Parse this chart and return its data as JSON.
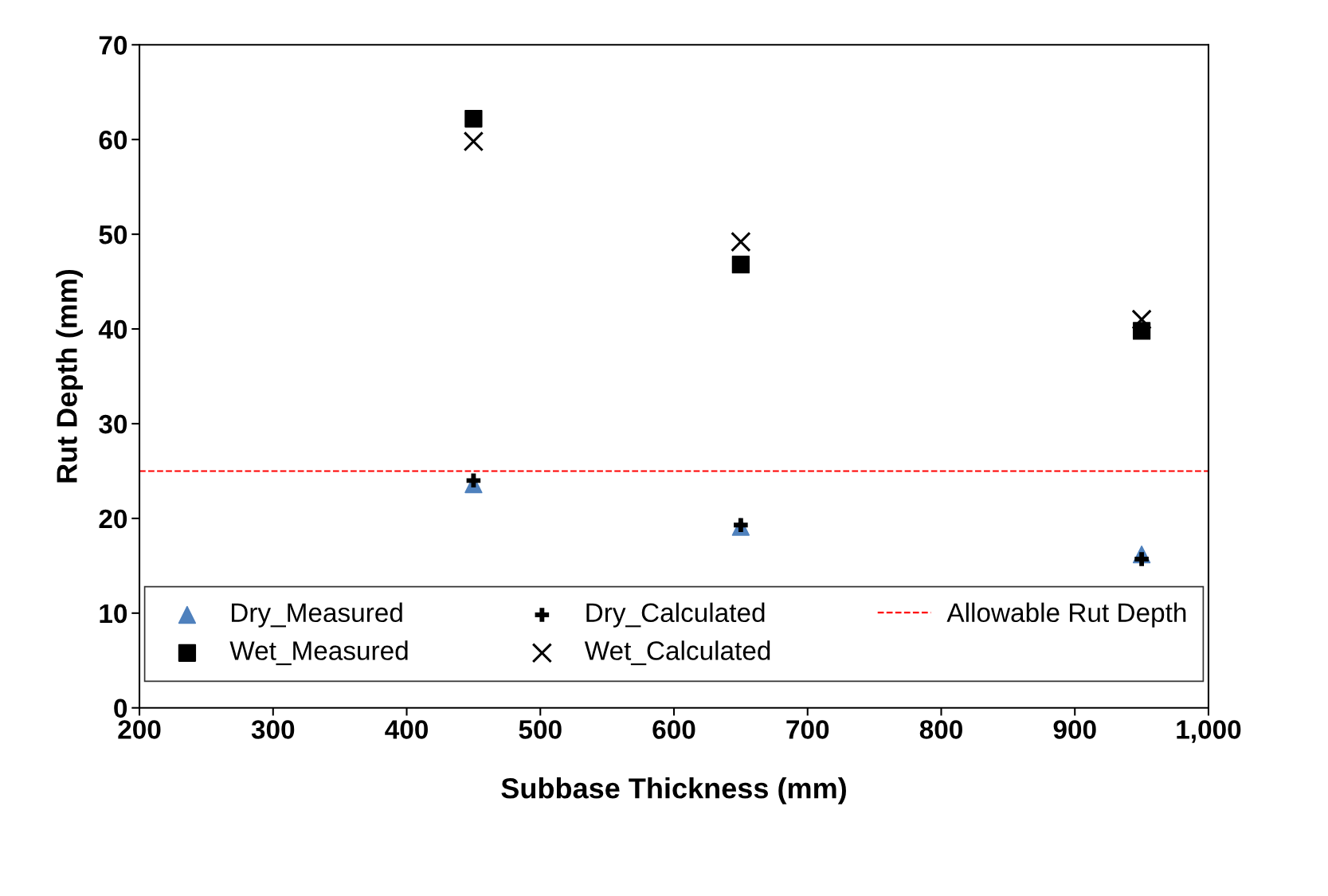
{
  "chart_data": {
    "type": "scatter",
    "xlabel": "Subbase Thickness (mm)",
    "ylabel": "Rut Depth (mm)",
    "x": [
      450,
      650,
      950
    ],
    "series": [
      {
        "name": "Dry_Measured",
        "color": "#4f81bd",
        "marker": "triangle",
        "values": [
          23.6,
          19.1,
          16.2
        ]
      },
      {
        "name": "Wet_Measured",
        "color": "#000000",
        "marker": "square",
        "values": [
          62.2,
          46.8,
          39.8
        ]
      },
      {
        "name": "Dry_Calculated",
        "color": "#000000",
        "values": [
          24.0,
          19.3,
          15.7
        ]
      },
      {
        "name": "Wet_Calculated",
        "color": "#000000",
        "marker": "cross",
        "values": [
          59.8,
          49.2,
          41.0
        ]
      }
    ],
    "ref_lines": [
      {
        "axis": "y",
        "value": 25,
        "label": "Allowable Rut Depth",
        "color": "#ff0000",
        "line_style": "dashed"
      }
    ],
    "xlim": [
      200,
      1000
    ],
    "xticks": [
      200,
      300,
      400,
      500,
      600,
      700,
      800,
      900,
      {
        "value": 1000,
        "label": "1,000"
      }
    ],
    "ylim": [
      0,
      70
    ],
    "yticks": [
      0,
      10,
      20,
      30,
      40,
      50,
      60,
      70
    ],
    "grid": false,
    "legend": "bottom"
  }
}
